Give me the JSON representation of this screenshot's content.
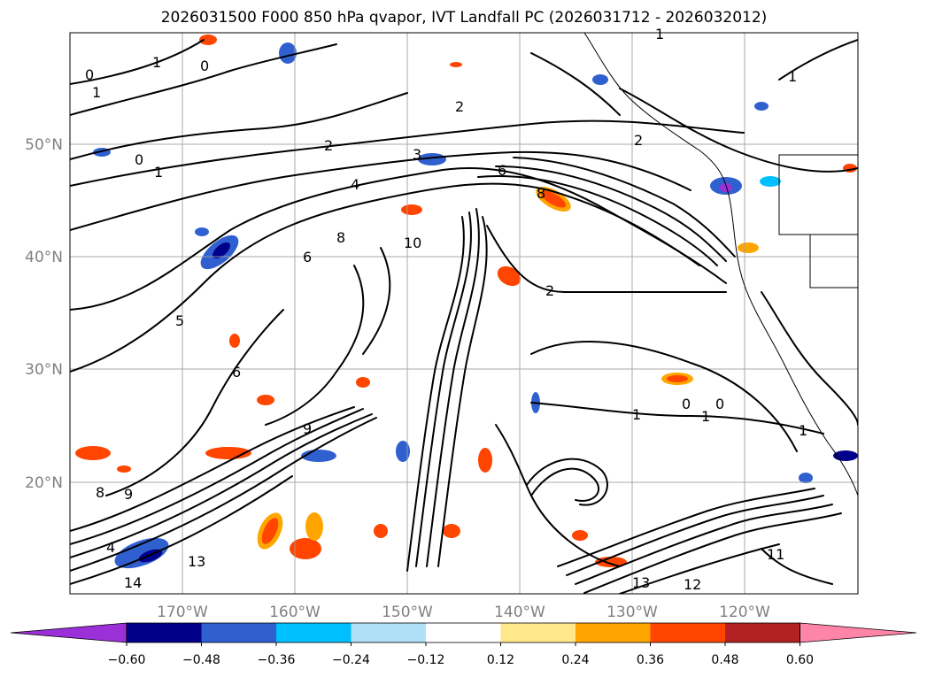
{
  "title": "2026031500 F000 850 hPa qvapor, IVT Landfall PC (2026031712 - 2026032012)",
  "lat_ticks": [
    "50°N",
    "40°N",
    "30°N",
    "20°N"
  ],
  "lon_ticks": [
    "170°W",
    "160°W",
    "150°W",
    "140°W",
    "130°W",
    "120°W"
  ],
  "colorbar": {
    "colors": [
      "#9b30d9",
      "#00008b",
      "#3060d0",
      "#00bfff",
      "#b0e0f8",
      "#ffffff",
      "#ffe88a",
      "#ffa500",
      "#ff4500",
      "#b22222",
      "#ff85a8"
    ],
    "tick_labels": [
      "−0.60",
      "−0.48",
      "−0.36",
      "−0.24",
      "−0.12",
      "0.12",
      "0.24",
      "0.36",
      "0.48",
      "0.60"
    ]
  },
  "contour_labels": [
    "1",
    "0",
    "1",
    "2",
    "0",
    "1",
    "2",
    "3",
    "4",
    "6",
    "8",
    "10",
    "8",
    "6",
    "5",
    "6",
    "2",
    "1",
    "0",
    "1",
    "0",
    "9",
    "8",
    "9",
    "4",
    "13",
    "14",
    "13",
    "12",
    "11",
    "1",
    "2",
    "1",
    "0",
    "1"
  ],
  "colors": {
    "contour": "#000000",
    "grid": "#a0a0a0",
    "tick_text": "#808080"
  }
}
